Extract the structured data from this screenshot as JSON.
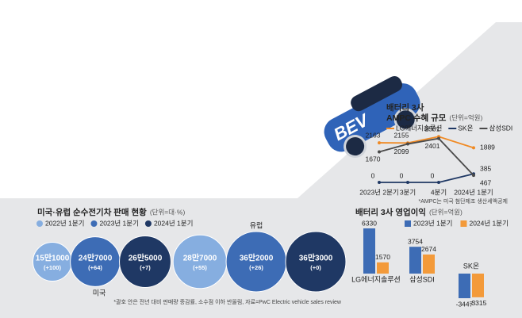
{
  "illustration": {
    "car_label": "BEV"
  },
  "chart_data": [
    {
      "type": "line",
      "title": "배터리 3사",
      "subtitle": "AMPC 수혜 규모",
      "unit": "(단위=억원)",
      "categories": [
        "2023년 2분기",
        "3분기",
        "4분기",
        "2024년 1분기"
      ],
      "series": [
        {
          "name": "LG에너지솔루션",
          "color": "#f08a24",
          "values": [
            2163,
            2155,
            2501,
            1889
          ]
        },
        {
          "name": "SK온",
          "color": "#1f3864",
          "values": [
            0,
            0,
            0,
            467
          ]
        },
        {
          "name": "삼성SDI",
          "color": "#4a4a4a",
          "values": [
            1670,
            2099,
            2401,
            385
          ]
        }
      ],
      "note": "*AMPC는 미국 첨단제조 생산세액공제"
    },
    {
      "type": "bubble",
      "title": "미국·유럽 순수전기차 판매 현황",
      "unit": "(단위=대·%)",
      "groups": [
        "미국",
        "유럽"
      ],
      "series": [
        {
          "name": "2022년 1분기",
          "color": "#86aee0",
          "values": [
            151000,
            287000
          ],
          "value_labels": [
            "15만1000",
            "28만7000"
          ],
          "change": [
            100,
            55
          ],
          "change_labels": [
            "(+100)",
            "(+55)"
          ]
        },
        {
          "name": "2023년 1분기",
          "color": "#3d6cb5",
          "values": [
            247000,
            362000
          ],
          "value_labels": [
            "24만7000",
            "36만2000"
          ],
          "change": [
            64,
            26
          ],
          "change_labels": [
            "(+64)",
            "(+26)"
          ]
        },
        {
          "name": "2024년 1분기",
          "color": "#1f3864",
          "values": [
            265000,
            363000
          ],
          "value_labels": [
            "26만5000",
            "36만3000"
          ],
          "change": [
            7,
            0
          ],
          "change_labels": [
            "(+7)",
            "(+0)"
          ]
        }
      ],
      "note": "*괄호 안은 전년 대비 판매량 증감률, 소수점 이하 반올림, 자료=PwC Electric vehicle sales review"
    },
    {
      "type": "bar",
      "title": "배터리 3사 영업이익",
      "unit": "(단위=억원)",
      "categories": [
        "LG에너지솔루션",
        "삼성SDI",
        "SK온"
      ],
      "series": [
        {
          "name": "2023년 1분기",
          "color": "#3d6cb5",
          "values": [
            6330,
            3754,
            -3447
          ]
        },
        {
          "name": "2024년 1분기",
          "color": "#f39a3a",
          "values": [
            1570,
            2674,
            -3315
          ]
        }
      ]
    }
  ]
}
